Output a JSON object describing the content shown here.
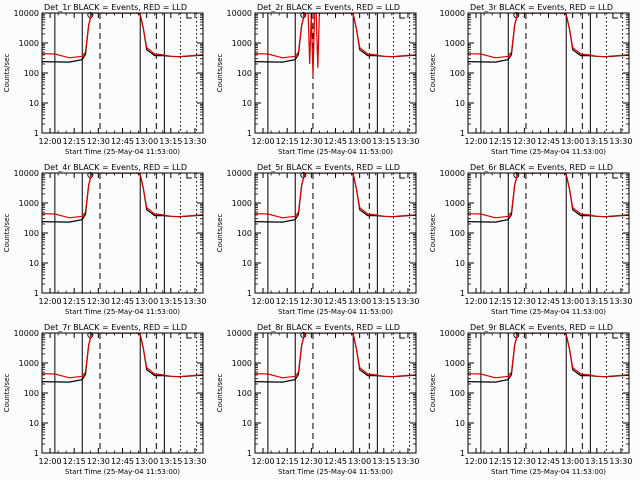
{
  "chart_data": {
    "type": "line",
    "layout": "3x3 grid of panels",
    "y_scale": "log",
    "ylim": [
      1,
      10000
    ],
    "y_ticks": [
      1,
      10,
      100,
      1000,
      10000
    ],
    "y_tick_labels": [
      "1",
      "10",
      "100",
      "1000",
      "10000"
    ],
    "xlim_minutes": [
      -5,
      95
    ],
    "x_ticks_minutes": [
      0,
      15,
      30,
      45,
      60,
      75,
      90
    ],
    "x_tick_labels": [
      "12:00",
      "12:15",
      "12:30",
      "12:45",
      "13:00",
      "13:15",
      "13:30"
    ],
    "x_tick_labels_right_column": [
      "12:00",
      "12:15",
      "12:30",
      "12:45",
      "13:00",
      "13:15",
      "13:30"
    ],
    "xlabel": "Start Time (25-May-04 11:53:00)",
    "ylabel": "Counts/sec",
    "series_colors": {
      "events": "#000000",
      "lld": "#dd0000"
    },
    "vertical_markers": {
      "solid": [
        3,
        20,
        56,
        71
      ],
      "dashed": [
        31,
        66
      ],
      "dotted": [
        81,
        91
      ]
    },
    "top_markers": {
      "circle_at": 25,
      "bracket_at": 85
    },
    "panels": [
      {
        "title": "Det_1r  BLACK = Events, RED = LLD",
        "events": {
          "x": [
            -5,
            3,
            12,
            20,
            22,
            24,
            26,
            28,
            30,
            32,
            35,
            40,
            50,
            54,
            56,
            58,
            60,
            65,
            70,
            75,
            80,
            85,
            90,
            95
          ],
          "y": [
            240,
            235,
            230,
            280,
            420,
            4000,
            10000,
            10000,
            10000,
            10000,
            10000,
            10000,
            10000,
            10000,
            9000,
            3000,
            600,
            380,
            380,
            360,
            350,
            360,
            380,
            390
          ]
        },
        "lld": {
          "x": [
            -5,
            3,
            12,
            20,
            22,
            24,
            26,
            28,
            30,
            32,
            35,
            40,
            50,
            54,
            56,
            58,
            60,
            65,
            70,
            75,
            80,
            85,
            90,
            95
          ],
          "y": [
            440,
            430,
            320,
            360,
            500,
            4000,
            10000,
            10000,
            10000,
            10000,
            10000,
            10000,
            10000,
            10000,
            9000,
            3000,
            700,
            430,
            400,
            360,
            350,
            370,
            390,
            400
          ]
        }
      },
      {
        "title": "Det_2r  BLACK = Events, RED = LLD",
        "events": {
          "x": [
            -5,
            3,
            12,
            20,
            22,
            24,
            26,
            28,
            30,
            32,
            35,
            40,
            50,
            54,
            56,
            58,
            60,
            65,
            70,
            75,
            80,
            85,
            90,
            95
          ],
          "y": [
            240,
            235,
            230,
            280,
            420,
            4000,
            10000,
            10000,
            10000,
            10000,
            10000,
            10000,
            10000,
            10000,
            9000,
            3000,
            600,
            380,
            380,
            360,
            350,
            360,
            380,
            390
          ]
        },
        "lld": {
          "x": [
            -5,
            3,
            12,
            20,
            22,
            24,
            26,
            28,
            29,
            30,
            31,
            32,
            33,
            34,
            35,
            40,
            50,
            54,
            56,
            58,
            60,
            65,
            70,
            75,
            80,
            85,
            90,
            95
          ],
          "y": [
            440,
            430,
            320,
            360,
            500,
            4000,
            10000,
            10000,
            200,
            10000,
            80,
            10000,
            10000,
            150,
            10000,
            10000,
            10000,
            10000,
            9000,
            3000,
            700,
            430,
            400,
            360,
            350,
            370,
            390,
            400
          ]
        }
      },
      {
        "title": "Det_3r  BLACK = Events, RED = LLD",
        "events": {
          "x": [
            -5,
            3,
            12,
            20,
            22,
            24,
            26,
            28,
            30,
            32,
            35,
            40,
            50,
            54,
            56,
            58,
            60,
            65,
            70,
            75,
            80,
            85,
            90,
            95
          ],
          "y": [
            240,
            235,
            230,
            280,
            420,
            4000,
            10000,
            10000,
            10000,
            10000,
            10000,
            10000,
            10000,
            10000,
            9000,
            3000,
            600,
            380,
            380,
            360,
            350,
            360,
            380,
            390
          ]
        },
        "lld": {
          "x": [
            -5,
            3,
            12,
            20,
            22,
            24,
            26,
            28,
            30,
            32,
            35,
            40,
            50,
            54,
            56,
            58,
            60,
            65,
            70,
            75,
            80,
            85,
            90,
            95
          ],
          "y": [
            440,
            430,
            320,
            360,
            500,
            4000,
            10000,
            10000,
            10000,
            10000,
            10000,
            10000,
            10000,
            10000,
            9000,
            3000,
            700,
            430,
            400,
            360,
            350,
            370,
            390,
            400
          ]
        }
      },
      {
        "title": "Det_4r  BLACK = Events, RED = LLD",
        "events": {
          "x": [
            -5,
            3,
            12,
            20,
            22,
            24,
            26,
            28,
            30,
            32,
            35,
            40,
            50,
            54,
            56,
            58,
            60,
            65,
            70,
            75,
            80,
            85,
            90,
            95
          ],
          "y": [
            240,
            235,
            230,
            280,
            420,
            4000,
            10000,
            10000,
            10000,
            10000,
            10000,
            10000,
            10000,
            10000,
            9000,
            3000,
            600,
            380,
            380,
            360,
            350,
            360,
            380,
            390
          ]
        },
        "lld": {
          "x": [
            -5,
            3,
            12,
            20,
            22,
            24,
            26,
            28,
            30,
            32,
            35,
            40,
            50,
            54,
            56,
            58,
            60,
            65,
            70,
            75,
            80,
            85,
            90,
            95
          ],
          "y": [
            440,
            430,
            320,
            360,
            500,
            4000,
            10000,
            10000,
            10000,
            10000,
            10000,
            10000,
            10000,
            10000,
            9000,
            3000,
            700,
            430,
            400,
            360,
            350,
            370,
            390,
            400
          ]
        }
      },
      {
        "title": "Det_5r  BLACK = Events, RED = LLD",
        "events": {
          "x": [
            -5,
            3,
            12,
            20,
            22,
            24,
            26,
            28,
            30,
            32,
            35,
            40,
            50,
            54,
            56,
            58,
            60,
            65,
            70,
            75,
            80,
            85,
            90,
            95
          ],
          "y": [
            240,
            235,
            230,
            280,
            420,
            4000,
            10000,
            10000,
            10000,
            10000,
            10000,
            10000,
            10000,
            10000,
            9000,
            3000,
            600,
            380,
            380,
            360,
            350,
            360,
            380,
            390
          ]
        },
        "lld": {
          "x": [
            -5,
            3,
            12,
            20,
            22,
            24,
            26,
            28,
            30,
            32,
            35,
            40,
            50,
            54,
            56,
            58,
            60,
            65,
            70,
            75,
            80,
            85,
            90,
            95
          ],
          "y": [
            440,
            430,
            320,
            360,
            500,
            4000,
            10000,
            10000,
            10000,
            10000,
            10000,
            10000,
            10000,
            10000,
            9000,
            3000,
            700,
            430,
            400,
            360,
            350,
            370,
            390,
            400
          ]
        }
      },
      {
        "title": "Det_6r  BLACK = Events, RED = LLD",
        "events": {
          "x": [
            -5,
            3,
            12,
            20,
            22,
            24,
            26,
            28,
            30,
            32,
            35,
            40,
            50,
            54,
            56,
            58,
            60,
            65,
            70,
            75,
            80,
            85,
            90,
            95
          ],
          "y": [
            240,
            235,
            230,
            280,
            420,
            4000,
            10000,
            10000,
            10000,
            10000,
            10000,
            10000,
            10000,
            10000,
            9000,
            3000,
            600,
            380,
            380,
            360,
            350,
            360,
            380,
            390
          ]
        },
        "lld": {
          "x": [
            -5,
            3,
            12,
            20,
            22,
            24,
            26,
            28,
            30,
            32,
            35,
            40,
            50,
            54,
            56,
            58,
            60,
            65,
            70,
            75,
            80,
            85,
            90,
            95
          ],
          "y": [
            440,
            430,
            320,
            360,
            500,
            4000,
            10000,
            10000,
            10000,
            10000,
            10000,
            10000,
            10000,
            10000,
            9000,
            3000,
            700,
            430,
            400,
            360,
            350,
            370,
            390,
            400
          ]
        }
      },
      {
        "title": "Det_7r  BLACK = Events, RED = LLD",
        "events": {
          "x": [
            -5,
            3,
            12,
            20,
            22,
            24,
            26,
            28,
            30,
            32,
            35,
            40,
            50,
            54,
            56,
            58,
            60,
            65,
            70,
            75,
            80,
            85,
            90,
            95
          ],
          "y": [
            240,
            235,
            230,
            280,
            420,
            4000,
            10000,
            10000,
            10000,
            10000,
            10000,
            10000,
            10000,
            10000,
            9000,
            3000,
            600,
            380,
            380,
            360,
            350,
            360,
            380,
            390
          ]
        },
        "lld": {
          "x": [
            -5,
            3,
            12,
            20,
            22,
            24,
            26,
            28,
            30,
            32,
            35,
            40,
            50,
            54,
            56,
            58,
            60,
            65,
            70,
            75,
            80,
            85,
            90,
            95
          ],
          "y": [
            440,
            430,
            320,
            360,
            500,
            4000,
            10000,
            10000,
            10000,
            10000,
            10000,
            10000,
            10000,
            10000,
            9000,
            3000,
            700,
            430,
            400,
            360,
            350,
            370,
            390,
            400
          ]
        }
      },
      {
        "title": "Det_8r  BLACK = Events, RED = LLD",
        "events": {
          "x": [
            -5,
            3,
            12,
            20,
            22,
            24,
            26,
            28,
            30,
            32,
            35,
            40,
            50,
            54,
            56,
            58,
            60,
            65,
            70,
            75,
            80,
            85,
            90,
            95
          ],
          "y": [
            240,
            235,
            230,
            280,
            420,
            4000,
            10000,
            10000,
            10000,
            10000,
            10000,
            10000,
            10000,
            10000,
            9000,
            3000,
            600,
            380,
            380,
            360,
            350,
            360,
            380,
            390
          ]
        },
        "lld": {
          "x": [
            -5,
            3,
            12,
            20,
            22,
            24,
            26,
            28,
            30,
            32,
            35,
            40,
            50,
            54,
            56,
            58,
            60,
            65,
            70,
            75,
            80,
            85,
            90,
            95
          ],
          "y": [
            440,
            430,
            320,
            360,
            500,
            4000,
            10000,
            10000,
            10000,
            10000,
            10000,
            10000,
            10000,
            10000,
            9000,
            3000,
            700,
            430,
            400,
            360,
            350,
            370,
            390,
            400
          ]
        }
      },
      {
        "title": "Det_9r  BLACK = Events, RED = LLD",
        "events": {
          "x": [
            -5,
            3,
            12,
            20,
            22,
            24,
            26,
            28,
            30,
            32,
            35,
            40,
            50,
            54,
            56,
            58,
            60,
            65,
            70,
            75,
            80,
            85,
            90,
            95
          ],
          "y": [
            240,
            235,
            230,
            280,
            420,
            4000,
            10000,
            10000,
            10000,
            10000,
            10000,
            10000,
            10000,
            10000,
            9000,
            3000,
            600,
            380,
            380,
            360,
            350,
            360,
            380,
            390
          ]
        },
        "lld": {
          "x": [
            -5,
            3,
            12,
            20,
            22,
            24,
            26,
            28,
            30,
            32,
            35,
            40,
            50,
            54,
            56,
            58,
            60,
            65,
            70,
            75,
            80,
            85,
            90,
            95
          ],
          "y": [
            440,
            430,
            320,
            360,
            500,
            4000,
            10000,
            10000,
            10000,
            10000,
            10000,
            10000,
            10000,
            10000,
            9000,
            3000,
            700,
            430,
            400,
            360,
            350,
            370,
            390,
            400
          ]
        }
      }
    ]
  }
}
